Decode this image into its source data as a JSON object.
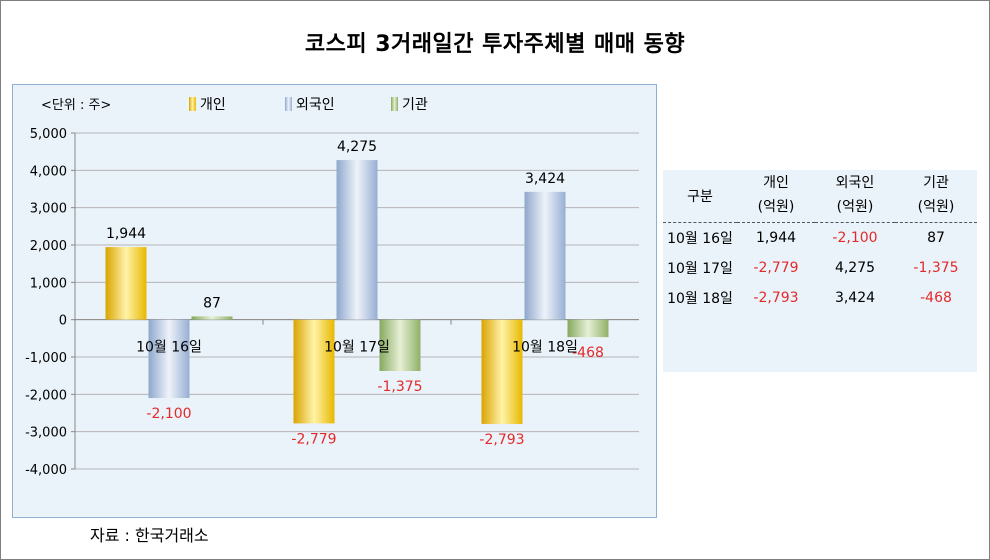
{
  "title": "코스피 3거래일간 투자주체별 매매 동향",
  "unit_label": "<단위 : 주>",
  "source": "자료 : 한국거래소",
  "colors": {
    "individual": "#f2c21a",
    "foreign": "#a9bfdc",
    "institution": "#9fbe78",
    "negative_text": "#e32a2a"
  },
  "chart_data": {
    "type": "bar",
    "categories": [
      "10월 16일",
      "10월 17일",
      "10월 18일"
    ],
    "series": [
      {
        "name": "개인",
        "values": [
          1944,
          -2779,
          -2793
        ]
      },
      {
        "name": "외국인",
        "values": [
          -2100,
          4275,
          3424
        ]
      },
      {
        "name": "기관",
        "values": [
          87,
          -1375,
          -468
        ]
      }
    ],
    "data_labels": [
      [
        "1,944",
        "-2,779",
        "-2,793"
      ],
      [
        "-2,100",
        "4,275",
        "3,424"
      ],
      [
        "87",
        "-1,375",
        "-468"
      ]
    ],
    "ylim": [
      -4000,
      5000
    ],
    "yticks": [
      "5,000",
      "4,000",
      "3,000",
      "2,000",
      "1,000",
      "0",
      "-1,000",
      "-2,000",
      "-3,000",
      "-4,000"
    ],
    "ytick_values": [
      5000,
      4000,
      3000,
      2000,
      1000,
      0,
      -1000,
      -2000,
      -3000,
      -4000
    ],
    "grid": true,
    "legend_position": "top"
  },
  "table": {
    "header_row1": [
      "구분",
      "개인",
      "외국인",
      "기관"
    ],
    "header_row2": [
      "(억원)",
      "(억원)",
      "(억원)"
    ],
    "rows": [
      {
        "date": "10월  16일",
        "individual": "1,944",
        "foreign": "-2,100",
        "institution": "87"
      },
      {
        "date": "10월  17일",
        "individual": "-2,779",
        "foreign": "4,275",
        "institution": "-1,375"
      },
      {
        "date": "10월  18일",
        "individual": "-2,793",
        "foreign": "3,424",
        "institution": "-468"
      }
    ]
  }
}
